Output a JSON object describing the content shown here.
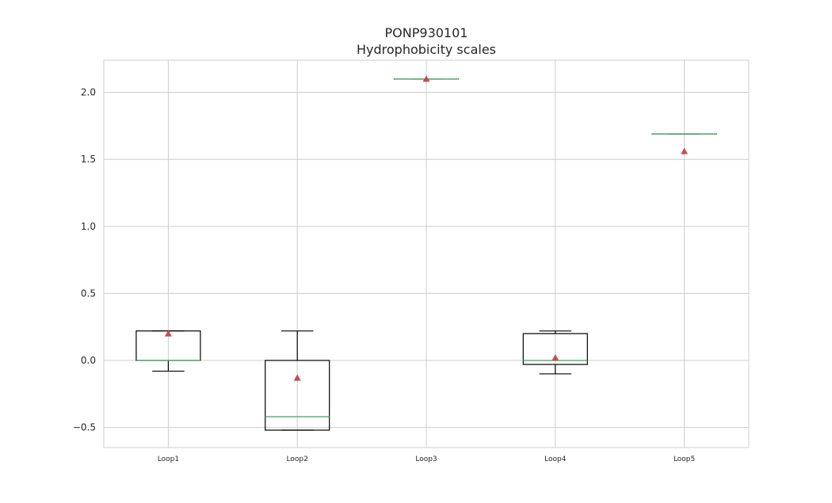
{
  "chart_data": {
    "type": "box",
    "title": "PONP930101",
    "subtitle": "Hydrophobicity scales",
    "xlabel": "",
    "ylabel": "",
    "ylim": [
      -0.65,
      2.24
    ],
    "yticks": [
      -0.5,
      0.0,
      0.5,
      1.0,
      1.5,
      2.0
    ],
    "ytick_labels": [
      "−0.5",
      "0.0",
      "0.5",
      "1.0",
      "1.5",
      "2.0"
    ],
    "grid": true,
    "categories": [
      "Loop1",
      "Loop2",
      "Loop3",
      "Loop4",
      "Loop5"
    ],
    "boxes": [
      {
        "whisker_low": -0.08,
        "q1": 0.0,
        "median": 0.0,
        "q3": 0.22,
        "whisker_high": 0.22,
        "mean": 0.2
      },
      {
        "whisker_low": -0.52,
        "q1": -0.52,
        "median": -0.42,
        "q3": 0.0,
        "whisker_high": 0.22,
        "mean": -0.13
      },
      {
        "whisker_low": 2.1,
        "q1": 2.1,
        "median": 2.1,
        "q3": 2.1,
        "whisker_high": 2.1,
        "mean": 2.1
      },
      {
        "whisker_low": -0.1,
        "q1": -0.03,
        "median": 0.0,
        "q3": 0.2,
        "whisker_high": 0.22,
        "mean": 0.02
      },
      {
        "whisker_low": 1.69,
        "q1": 1.69,
        "median": 1.69,
        "q3": 1.69,
        "whisker_high": 1.69,
        "mean": 1.56
      }
    ],
    "colors": {
      "box": "#000000",
      "median": "#55a868",
      "mean": "#c44e52",
      "grid": "#cccccc",
      "frame": "#cccccc"
    }
  }
}
